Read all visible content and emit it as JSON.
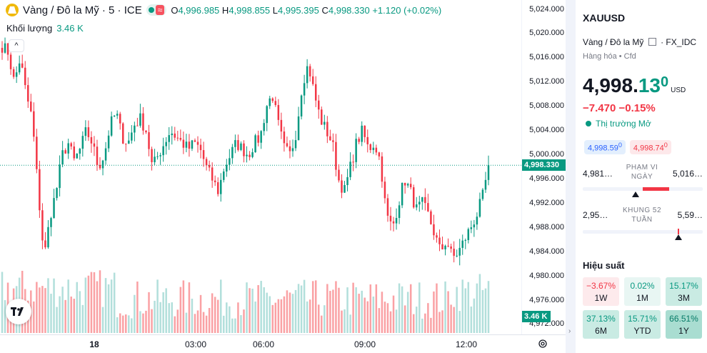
{
  "legend": {
    "title": "Vàng / Đô la Mỹ · 5 · ICE",
    "o_key": "O",
    "o_val": "4,996.985",
    "h_key": "H",
    "h_val": "4,998.855",
    "l_key": "L",
    "l_val": "4,995.395",
    "c_key": "C",
    "c_val": "4,998.330",
    "change": "+1.120 (+0.02%)",
    "badge": "≈",
    "volume_label": "Khối lượng",
    "volume_value": "3.46 K",
    "collapse_glyph": "^"
  },
  "price_axis": {
    "ticks": [
      "5,024.000",
      "5,020.000",
      "5,016.000",
      "5,012.000",
      "5,008.000",
      "5,004.000",
      "5,000.000",
      "4,996.000",
      "4,992.000",
      "4,988.000",
      "4,984.000",
      "4,980.000",
      "4,976.000",
      "4,972.000"
    ],
    "current_price_label": "4,998.330",
    "volume_label": "3.46 K"
  },
  "time_axis": {
    "labels": [
      {
        "text": "18",
        "bold": true
      },
      {
        "text": "03:00",
        "bold": false
      },
      {
        "text": "06:00",
        "bold": false
      },
      {
        "text": "09:00",
        "bold": false
      },
      {
        "text": "12:00",
        "bold": false
      }
    ]
  },
  "chart_data": {
    "type": "candlestick",
    "ylim": [
      4970.4,
      5025.6
    ],
    "current_price": 4998.33,
    "colors": {
      "up": "#089981",
      "down": "#f23645",
      "up_vol": "#b2dfdb",
      "down_vol": "#faa1a4"
    },
    "anchors_close": [
      5018,
      5017,
      5012,
      5016,
      5010,
      5006,
      4994,
      4983,
      4990,
      4994,
      5000,
      5002,
      4999,
      5001,
      5004,
      5002,
      4998,
      5000,
      5005,
      5007,
      5003,
      5002,
      5005,
      5006,
      5004,
      4998,
      5000,
      5002,
      5004,
      5003,
      5002,
      5001,
      5002,
      5001,
      4998,
      4996,
      4994,
      4998,
      5000,
      5002,
      5001,
      5000,
      5002,
      5003,
      5008,
      5010,
      5005,
      5001,
      5000,
      5004,
      5012,
      5015,
      5010,
      5006,
      5004,
      5002,
      4996,
      4994,
      4998,
      5002,
      5004,
      5001,
      5002,
      4999,
      4990,
      4988,
      4992,
      4996,
      4994,
      4991,
      4992,
      4990,
      4987,
      4984,
      4986,
      4983,
      4984,
      4986,
      4988,
      4990,
      4993,
      4998
    ],
    "volume_note": "volume bars shown at bottom"
  },
  "panel": {
    "symbol": "XAUUSD",
    "exchange": "Vàng / Đô la Mỹ",
    "exchange_suffix": "· FX_IDC",
    "category": "Hàng hóa • Cfd",
    "price_main": "4,998.",
    "price_dec": "13",
    "price_sup": "0",
    "currency": "USD",
    "change": "−7.470  −0.15%",
    "market_status": "Thị trường Mở",
    "bid": "4,998.59",
    "bid_sup": "0",
    "ask": "4,998.74",
    "ask_sup": "0",
    "day_range": {
      "low": "4,981…",
      "label": "PHẠM VI NGÀY",
      "high": "5,016…",
      "position": 0.5,
      "fill_from": 0.5,
      "fill_to": 0.72
    },
    "week52_range": {
      "low": "2,95…",
      "label": "KHUNG 52 TUẦN",
      "high": "5,59…",
      "position": 0.79
    },
    "performance_title": "Hiệu suất",
    "performance": [
      {
        "value": "−3.67%",
        "period": "1W",
        "tone": "neg"
      },
      {
        "value": "0.02%",
        "period": "1M",
        "tone": "pos1"
      },
      {
        "value": "15.17%",
        "period": "3M",
        "tone": "pos2"
      },
      {
        "value": "37.13%",
        "period": "6M",
        "tone": "pos2"
      },
      {
        "value": "15.71%",
        "period": "YTD",
        "tone": "pos2"
      },
      {
        "value": "66.51%",
        "period": "1Y",
        "tone": "pos3"
      }
    ]
  }
}
